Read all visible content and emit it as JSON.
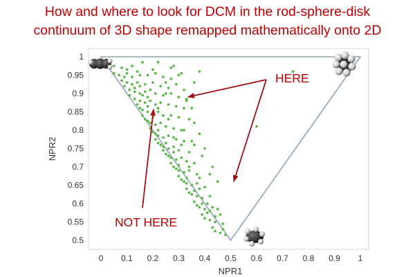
{
  "title_lines": [
    "How and where to look for DCM in the rod-sphere-disk",
    "continuum of 3D shape remapped mathematically onto 2D"
  ],
  "colors": {
    "title": "#c00000",
    "points": "#5cb84a",
    "triangle": "#8fa4b8",
    "panel_border": "#d4d4d4",
    "annotation": "#a01010"
  },
  "icons": [
    "rod-molecule-icon",
    "sphere-molecule-icon",
    "disk-molecule-icon"
  ],
  "chart_data": {
    "type": "scatter",
    "xlabel": "NPR1",
    "ylabel": "NPR2",
    "xlim": [
      -0.05,
      1.05
    ],
    "ylim": [
      0.475,
      1.02
    ],
    "xticks": [
      0,
      0.1,
      0.2,
      0.3,
      0.4,
      0.5,
      0.6,
      0.7,
      0.8,
      0.9,
      1
    ],
    "xtick_labels": [
      "0",
      "0.1",
      "0.2",
      "0.3",
      "0.4",
      "0.5",
      "0.6",
      "0.7",
      "0.8",
      "0.9",
      "1"
    ],
    "yticks": [
      0.5,
      0.55,
      0.6,
      0.65,
      0.7,
      0.75,
      0.8,
      0.85,
      0.9,
      0.95,
      1
    ],
    "ytick_labels": [
      "0.5",
      "0.55",
      "0.6",
      "0.65",
      "0.7",
      "0.75",
      "0.8",
      "0.85",
      "0.9",
      "0.95",
      "1"
    ],
    "grid": false,
    "legend": null,
    "triangle_vertices": [
      [
        0,
        1
      ],
      [
        1,
        1
      ],
      [
        0.5,
        0.5
      ]
    ],
    "series": [
      {
        "points": [
          [
            0.02,
            0.985
          ],
          [
            0.05,
            0.975
          ],
          [
            0.08,
            0.97
          ],
          [
            0.12,
            0.975
          ],
          [
            0.16,
            0.985
          ],
          [
            0.22,
            0.985
          ],
          [
            0.28,
            0.975
          ],
          [
            0.1,
            0.955
          ],
          [
            0.05,
            0.955
          ],
          [
            0.07,
            0.95
          ],
          [
            0.09,
            0.945
          ],
          [
            0.12,
            0.945
          ],
          [
            0.15,
            0.95
          ],
          [
            0.18,
            0.95
          ],
          [
            0.21,
            0.955
          ],
          [
            0.24,
            0.945
          ],
          [
            0.27,
            0.94
          ],
          [
            0.31,
            0.955
          ],
          [
            0.08,
            0.935
          ],
          [
            0.1,
            0.93
          ],
          [
            0.12,
            0.925
          ],
          [
            0.14,
            0.93
          ],
          [
            0.17,
            0.925
          ],
          [
            0.2,
            0.93
          ],
          [
            0.23,
            0.92
          ],
          [
            0.26,
            0.915
          ],
          [
            0.29,
            0.925
          ],
          [
            0.32,
            0.91
          ],
          [
            0.09,
            0.92
          ],
          [
            0.11,
            0.91
          ],
          [
            0.13,
            0.905
          ],
          [
            0.15,
            0.9
          ],
          [
            0.17,
            0.905
          ],
          [
            0.19,
            0.91
          ],
          [
            0.21,
            0.9
          ],
          [
            0.24,
            0.895
          ],
          [
            0.27,
            0.9
          ],
          [
            0.3,
            0.89
          ],
          [
            0.33,
            0.885
          ],
          [
            0.11,
            0.895
          ],
          [
            0.13,
            0.885
          ],
          [
            0.15,
            0.88
          ],
          [
            0.17,
            0.875
          ],
          [
            0.19,
            0.88
          ],
          [
            0.21,
            0.87
          ],
          [
            0.23,
            0.875
          ],
          [
            0.26,
            0.87
          ],
          [
            0.29,
            0.865
          ],
          [
            0.32,
            0.86
          ],
          [
            0.14,
            0.87
          ],
          [
            0.15,
            0.86
          ],
          [
            0.16,
            0.855
          ],
          [
            0.18,
            0.85
          ],
          [
            0.2,
            0.845
          ],
          [
            0.22,
            0.85
          ],
          [
            0.24,
            0.84
          ],
          [
            0.27,
            0.84
          ],
          [
            0.3,
            0.835
          ],
          [
            0.34,
            0.83
          ],
          [
            0.16,
            0.84
          ],
          [
            0.17,
            0.83
          ],
          [
            0.18,
            0.825
          ],
          [
            0.19,
            0.82
          ],
          [
            0.21,
            0.815
          ],
          [
            0.23,
            0.82
          ],
          [
            0.25,
            0.81
          ],
          [
            0.28,
            0.805
          ],
          [
            0.31,
            0.8
          ],
          [
            0.19,
            0.805
          ],
          [
            0.2,
            0.795
          ],
          [
            0.21,
            0.79
          ],
          [
            0.22,
            0.785
          ],
          [
            0.24,
            0.78
          ],
          [
            0.26,
            0.785
          ],
          [
            0.29,
            0.775
          ],
          [
            0.32,
            0.77
          ],
          [
            0.21,
            0.775
          ],
          [
            0.22,
            0.765
          ],
          [
            0.23,
            0.76
          ],
          [
            0.24,
            0.755
          ],
          [
            0.26,
            0.75
          ],
          [
            0.28,
            0.755
          ],
          [
            0.3,
            0.745
          ],
          [
            0.34,
            0.74
          ],
          [
            0.24,
            0.745
          ],
          [
            0.25,
            0.735
          ],
          [
            0.26,
            0.73
          ],
          [
            0.27,
            0.725
          ],
          [
            0.29,
            0.72
          ],
          [
            0.31,
            0.725
          ],
          [
            0.33,
            0.715
          ],
          [
            0.36,
            0.71
          ],
          [
            0.27,
            0.71
          ],
          [
            0.28,
            0.7
          ],
          [
            0.29,
            0.695
          ],
          [
            0.3,
            0.69
          ],
          [
            0.32,
            0.685
          ],
          [
            0.34,
            0.69
          ],
          [
            0.37,
            0.68
          ],
          [
            0.3,
            0.675
          ],
          [
            0.31,
            0.665
          ],
          [
            0.32,
            0.66
          ],
          [
            0.33,
            0.655
          ],
          [
            0.35,
            0.65
          ],
          [
            0.37,
            0.655
          ],
          [
            0.4,
            0.645
          ],
          [
            0.33,
            0.64
          ],
          [
            0.34,
            0.63
          ],
          [
            0.35,
            0.625
          ],
          [
            0.37,
            0.62
          ],
          [
            0.39,
            0.615
          ],
          [
            0.42,
            0.62
          ],
          [
            0.36,
            0.605
          ],
          [
            0.37,
            0.595
          ],
          [
            0.38,
            0.59
          ],
          [
            0.4,
            0.585
          ],
          [
            0.42,
            0.58
          ],
          [
            0.45,
            0.585
          ],
          [
            0.39,
            0.57
          ],
          [
            0.4,
            0.56
          ],
          [
            0.42,
            0.555
          ],
          [
            0.44,
            0.55
          ],
          [
            0.47,
            0.545
          ],
          [
            0.43,
            0.535
          ],
          [
            0.44,
            0.525
          ],
          [
            0.46,
            0.52
          ],
          [
            0.48,
            0.515
          ],
          [
            0.38,
            0.64
          ],
          [
            0.41,
            0.6
          ],
          [
            0.43,
            0.59
          ],
          [
            0.46,
            0.57
          ],
          [
            0.25,
            0.9
          ],
          [
            0.33,
            0.88
          ],
          [
            0.36,
            0.82
          ],
          [
            0.38,
            0.79
          ],
          [
            0.4,
            0.75
          ],
          [
            0.36,
            0.76
          ],
          [
            0.43,
            0.7
          ],
          [
            0.45,
            0.66
          ],
          [
            0.3,
            0.95
          ],
          [
            0.38,
            0.96
          ],
          [
            0.27,
            0.97
          ],
          [
            0.36,
            0.93
          ],
          [
            0.2,
            0.965
          ],
          [
            0.6,
            0.81
          ],
          [
            0.74,
            0.96
          ],
          [
            0.13,
            0.915
          ],
          [
            0.16,
            0.895
          ],
          [
            0.18,
            0.865
          ],
          [
            0.2,
            0.835
          ],
          [
            0.22,
            0.8
          ],
          [
            0.25,
            0.765
          ],
          [
            0.28,
            0.74
          ],
          [
            0.3,
            0.705
          ],
          [
            0.33,
            0.67
          ],
          [
            0.36,
            0.635
          ],
          [
            0.39,
            0.6
          ],
          [
            0.41,
            0.575
          ],
          [
            0.44,
            0.565
          ],
          [
            0.47,
            0.53
          ],
          [
            0.15,
            0.92
          ],
          [
            0.18,
            0.89
          ],
          [
            0.22,
            0.86
          ],
          [
            0.26,
            0.83
          ],
          [
            0.28,
            0.78
          ],
          [
            0.31,
            0.76
          ],
          [
            0.34,
            0.7
          ],
          [
            0.38,
            0.67
          ],
          [
            0.1,
            0.965
          ],
          [
            0.14,
            0.96
          ],
          [
            0.25,
            0.93
          ],
          [
            0.35,
            0.86
          ],
          [
            0.32,
            0.8
          ],
          [
            0.35,
            0.77
          ],
          [
            0.39,
            0.73
          ],
          [
            0.42,
            0.68
          ]
        ]
      }
    ],
    "annotations": [
      "HERE",
      "NOT HERE"
    ]
  }
}
